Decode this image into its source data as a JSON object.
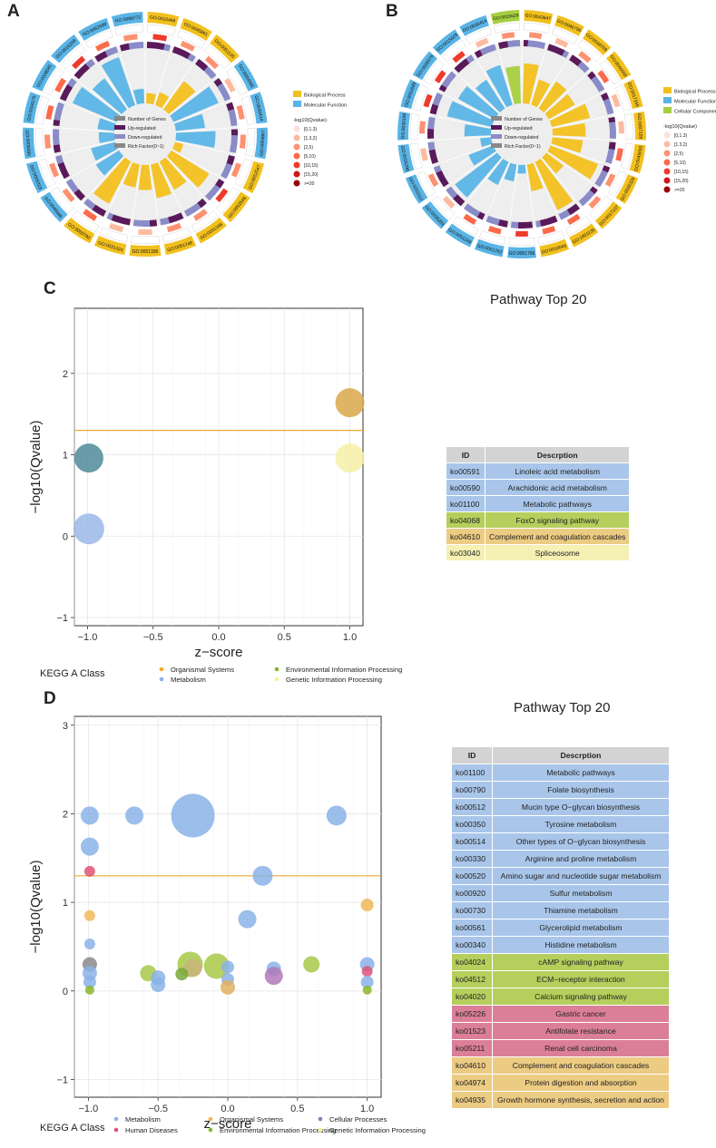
{
  "figure": {
    "panels": {
      "a": "A",
      "b": "B",
      "c": "C",
      "d": "D"
    }
  },
  "panelA": {
    "outer_ids": [
      "GO:0010466",
      "GO:0045861",
      "GO:0061135",
      "GO:0004866",
      "GO:0030414",
      "GO:0004867",
      "GO:0052547",
      "GO:0052548",
      "GO:0051346",
      "GO:0051248",
      "GO:0051336",
      "GO:0031324",
      "GO:0050790",
      "GO:0048046",
      "GO:0005319",
      "GO:0008289",
      "GO:0004175",
      "GO:0008081",
      "GO:0016298",
      "GO:0052689",
      "GO:0098772"
    ],
    "ring_colors_ids": [
      "bp",
      "bp",
      "bp",
      "mf",
      "mf",
      "mf",
      "bp",
      "bp",
      "bp",
      "bp",
      "bp",
      "bp",
      "bp",
      "mf",
      "mf",
      "mf",
      "mf",
      "mf",
      "mf",
      "mf",
      "mf"
    ],
    "legend": {
      "categories": [
        {
          "label": "Biological Process",
          "color": "#f2c01e"
        },
        {
          "label": "Molecular Function",
          "color": "#5ab4e5"
        }
      ],
      "qvalue_title": "-log10(Qvalue)",
      "qvalue_bins": [
        {
          "label": "[0,1.3)",
          "color": "#fde0dd"
        },
        {
          "label": "[1.3,2)",
          "color": "#fcbba1"
        },
        {
          "label": "[2,5)",
          "color": "#fc9272"
        },
        {
          "label": "[5,10)",
          "color": "#fb6a4a"
        },
        {
          "label": "[10,15)",
          "color": "#ef3b2c"
        },
        {
          "label": "[15,20)",
          "color": "#cb181d"
        },
        {
          "label": ">=20",
          "color": "#99000d"
        }
      ]
    },
    "inner_legend": [
      "Number of Genes",
      "Up-regulated",
      "Down-regulated",
      "Rich Factor(0~1)"
    ]
  },
  "panelB": {
    "outer_ids": [
      "GO:0043647",
      "GO:0046796",
      "GO:0048709",
      "GO:0040008",
      "GO:0017156",
      "GO:0007155",
      "GO:0045055",
      "GO:0035329",
      "GO:0017137",
      "GO:1901135",
      "GO:0016646",
      "GO:0051766",
      "GO:0051262",
      "GO:0051248",
      "GO:0008289",
      "GO:0031012",
      "GO:0016298",
      "GO:0030106",
      "GO:0052689",
      "GO:0005576",
      "GO:0015629",
      "GO:0030414",
      "GO:0015629"
    ],
    "ring_colors_ids": [
      "bp",
      "bp",
      "bp",
      "bp",
      "bp",
      "bp",
      "bp",
      "bp",
      "bp",
      "bp",
      "bp",
      "mf",
      "mf",
      "mf",
      "mf",
      "mf",
      "mf",
      "mf",
      "mf",
      "mf",
      "mf",
      "mf",
      "cc"
    ],
    "legend": {
      "categories": [
        {
          "label": "Biological Process",
          "color": "#f2c01e"
        },
        {
          "label": "Molecular Function",
          "color": "#5ab4e5"
        },
        {
          "label": "Cellular Component",
          "color": "#a6cf3f"
        }
      ],
      "qvalue_title": "-log10(Qvalue)",
      "qvalue_bins": [
        {
          "label": "[0,1.3)",
          "color": "#fde0dd"
        },
        {
          "label": "[1.3,2)",
          "color": "#fcbba1"
        },
        {
          "label": "[2,5)",
          "color": "#fc9272"
        },
        {
          "label": "[5,10)",
          "color": "#fb6a4a"
        },
        {
          "label": "[10,15)",
          "color": "#ef3b2c"
        },
        {
          "label": "[15,20)",
          "color": "#cb181d"
        },
        {
          "label": ">=20",
          "color": "#99000d"
        }
      ]
    },
    "inner_legend": [
      "Number of Genes",
      "Up-regulated",
      "Down-regulated",
      "Rich Factor(0~1)"
    ]
  },
  "chart_data": [
    {
      "id": "C",
      "type": "scatter",
      "title": "Pathway Top 20",
      "xlabel": "z−score",
      "ylabel": "−log10(Qvalue)",
      "xlim": [
        -1.1,
        1.1
      ],
      "ylim": [
        -1.1,
        2.8
      ],
      "xticks": [
        -1.0,
        -0.5,
        0.0,
        0.5,
        1.0
      ],
      "xtick_labels": [
        "−1.0",
        "−0.5",
        "0.0",
        "0.5",
        "1.0"
      ],
      "yticks": [
        -1,
        0,
        1,
        2
      ],
      "ytick_labels": [
        "−1",
        "0",
        "1",
        "2"
      ],
      "threshold": 1.3,
      "points": [
        {
          "x": -0.99,
          "y": 0.96,
          "size": 16,
          "class": "Metabolism",
          "color": "#4f8a9a"
        },
        {
          "x": -0.99,
          "y": 0.09,
          "size": 17,
          "class": "Metabolism",
          "color": "#9ab8e6"
        },
        {
          "x": 1.0,
          "y": 1.64,
          "size": 16,
          "class": "Organismal Systems",
          "color": "#d9a84a"
        },
        {
          "x": 1.0,
          "y": 0.96,
          "size": 16,
          "class": "Genetic Information Processing",
          "color": "#f6f0a6"
        }
      ],
      "legend_title": "KEGG A Class",
      "legend": [
        {
          "label": "Organismal Systems",
          "color": "#f0a830"
        },
        {
          "label": "Metabolism",
          "color": "#8ab3e8"
        },
        {
          "label": "Environmental Information Processing",
          "color": "#88b828"
        },
        {
          "label": "Genetic Information Processing",
          "color": "#f8f098"
        }
      ],
      "table": {
        "headers": [
          "ID",
          "Descrption"
        ],
        "rows": [
          {
            "id": "ko00591",
            "desc": "Linoleic acid metabolism",
            "color": "#a9c6ea"
          },
          {
            "id": "ko00590",
            "desc": "Arachidonic acid metabolism",
            "color": "#a9c6ea"
          },
          {
            "id": "ko01100",
            "desc": "Metabolic pathways",
            "color": "#a9c6ea"
          },
          {
            "id": "ko04068",
            "desc": "FoxO signaling pathway",
            "color": "#b5cf5d"
          },
          {
            "id": "ko04610",
            "desc": "Complement and coagulation cascades",
            "color": "#eccb83"
          },
          {
            "id": "ko03040",
            "desc": "Spliceosome",
            "color": "#f5f0b3"
          }
        ]
      }
    },
    {
      "id": "D",
      "type": "scatter",
      "title": "Pathway Top 20",
      "xlabel": "z−score",
      "ylabel": "−log10(Qvalue)",
      "xlim": [
        -1.1,
        1.1
      ],
      "ylim": [
        -1.2,
        3.1
      ],
      "xticks": [
        -1.0,
        -0.5,
        0.0,
        0.5,
        1.0
      ],
      "xtick_labels": [
        "−1.0",
        "−0.5",
        "0.0",
        "0.5",
        "1.0"
      ],
      "yticks": [
        -1,
        0,
        1,
        2,
        3
      ],
      "ytick_labels": [
        "−1",
        "0",
        "1",
        "2",
        "3"
      ],
      "threshold": 1.3,
      "points": [
        {
          "x": -0.99,
          "y": 1.98,
          "size": 10,
          "color": "#8ab3e8"
        },
        {
          "x": -0.99,
          "y": 1.63,
          "size": 10,
          "color": "#8ab3e8"
        },
        {
          "x": -0.99,
          "y": 1.35,
          "size": 6,
          "color": "#dd5577"
        },
        {
          "x": -0.99,
          "y": 0.85,
          "size": 6,
          "color": "#f0b858"
        },
        {
          "x": -0.99,
          "y": 0.53,
          "size": 6,
          "color": "#8ab3e8"
        },
        {
          "x": -0.99,
          "y": 0.3,
          "size": 8,
          "color": "#8a8a8a"
        },
        {
          "x": -0.99,
          "y": 0.2,
          "size": 8,
          "color": "#8ab3e8"
        },
        {
          "x": -0.99,
          "y": 0.1,
          "size": 7,
          "color": "#8ab3e8"
        },
        {
          "x": -0.99,
          "y": 0.01,
          "size": 5,
          "color": "#88b828"
        },
        {
          "x": -0.67,
          "y": 1.98,
          "size": 10,
          "color": "#8ab3e8"
        },
        {
          "x": -0.25,
          "y": 1.98,
          "size": 24,
          "color": "#8ab3e8"
        },
        {
          "x": 0.78,
          "y": 1.98,
          "size": 11,
          "color": "#8ab3e8"
        },
        {
          "x": 0.25,
          "y": 1.3,
          "size": 11,
          "color": "#8ab3e8"
        },
        {
          "x": 1.0,
          "y": 0.97,
          "size": 7,
          "color": "#f0b858"
        },
        {
          "x": 0.14,
          "y": 0.81,
          "size": 10,
          "color": "#8ab3e8"
        },
        {
          "x": -0.57,
          "y": 0.2,
          "size": 9,
          "color": "#a8c848"
        },
        {
          "x": -0.5,
          "y": 0.15,
          "size": 8,
          "color": "#8ab3e8"
        },
        {
          "x": -0.5,
          "y": 0.07,
          "size": 8,
          "color": "#8ab3e8"
        },
        {
          "x": -0.27,
          "y": 0.3,
          "size": 14,
          "color": "#a8c848"
        },
        {
          "x": -0.25,
          "y": 0.26,
          "size": 10,
          "color": "#c9b47a"
        },
        {
          "x": -0.08,
          "y": 0.28,
          "size": 14,
          "color": "#a8c848"
        },
        {
          "x": -0.33,
          "y": 0.19,
          "size": 7,
          "color": "#78a838"
        },
        {
          "x": 0.0,
          "y": 0.27,
          "size": 7,
          "color": "#8ab3e8"
        },
        {
          "x": 0.0,
          "y": 0.13,
          "size": 7,
          "color": "#8ab3e8"
        },
        {
          "x": 0.0,
          "y": 0.04,
          "size": 8,
          "color": "#e0b060"
        },
        {
          "x": 0.33,
          "y": 0.25,
          "size": 8,
          "color": "#8ab3e8"
        },
        {
          "x": 0.33,
          "y": 0.17,
          "size": 10,
          "color": "#b07ab8"
        },
        {
          "x": 0.6,
          "y": 0.3,
          "size": 9,
          "color": "#a8c848"
        },
        {
          "x": 1.0,
          "y": 0.3,
          "size": 8,
          "color": "#8ab3e8"
        },
        {
          "x": 1.0,
          "y": 0.22,
          "size": 6,
          "color": "#dd5577"
        },
        {
          "x": 1.0,
          "y": 0.1,
          "size": 7,
          "color": "#8ab3e8"
        },
        {
          "x": 1.0,
          "y": 0.01,
          "size": 5,
          "color": "#88b828"
        }
      ],
      "legend_title": "KEGG A Class",
      "legend": [
        {
          "label": "Metabolism",
          "color": "#8ab3e8"
        },
        {
          "label": "Organismal Systems",
          "color": "#f0b858"
        },
        {
          "label": "Cellular Processes",
          "color": "#8080c0"
        },
        {
          "label": "Human Diseases",
          "color": "#dd5577"
        },
        {
          "label": "Environmental Information Processing",
          "color": "#88b828"
        },
        {
          "label": "Genetic Information Processing",
          "color": "#f8f098"
        }
      ],
      "table": {
        "headers": [
          "ID",
          "Descrption"
        ],
        "rows": [
          {
            "id": "ko01100",
            "desc": "Metabolic pathways",
            "color": "#a9c6ea"
          },
          {
            "id": "ko00790",
            "desc": "Folate biosynthesis",
            "color": "#a9c6ea"
          },
          {
            "id": "ko00512",
            "desc": "Mucin type O−glycan biosynthesis",
            "color": "#a9c6ea"
          },
          {
            "id": "ko00350",
            "desc": "Tyrosine metabolism",
            "color": "#a9c6ea"
          },
          {
            "id": "ko00514",
            "desc": "Other types of O−glycan biosynthesis",
            "color": "#a9c6ea"
          },
          {
            "id": "ko00330",
            "desc": "Arginine and proline metabolism",
            "color": "#a9c6ea"
          },
          {
            "id": "ko00520",
            "desc": "Amino sugar and nucleotide sugar metabolism",
            "color": "#a9c6ea"
          },
          {
            "id": "ko00920",
            "desc": "Sulfur metabolism",
            "color": "#a9c6ea"
          },
          {
            "id": "ko00730",
            "desc": "Thiamine metabolism",
            "color": "#a9c6ea"
          },
          {
            "id": "ko00561",
            "desc": "Glycerolipid metabolism",
            "color": "#a9c6ea"
          },
          {
            "id": "ko00340",
            "desc": "Histidine metabolism",
            "color": "#a9c6ea"
          },
          {
            "id": "ko04024",
            "desc": "cAMP signaling pathway",
            "color": "#b5cf5d"
          },
          {
            "id": "ko04512",
            "desc": "ECM−receptor interaction",
            "color": "#b5cf5d"
          },
          {
            "id": "ko04020",
            "desc": "Calcium signaling pathway",
            "color": "#b5cf5d"
          },
          {
            "id": "ko05226",
            "desc": "Gastric cancer",
            "color": "#db7f97"
          },
          {
            "id": "ko01523",
            "desc": "Antifolate resistance",
            "color": "#db7f97"
          },
          {
            "id": "ko05211",
            "desc": "Renal cell carcinoma",
            "color": "#db7f97"
          },
          {
            "id": "ko04610",
            "desc": "Complement and coagulation cascades",
            "color": "#eccb83"
          },
          {
            "id": "ko04974",
            "desc": "Protein digestion and absorption",
            "color": "#eccb83"
          },
          {
            "id": "ko04935",
            "desc": "Growth hormone synthesis, secretion and action",
            "color": "#eccb83"
          }
        ]
      }
    }
  ]
}
